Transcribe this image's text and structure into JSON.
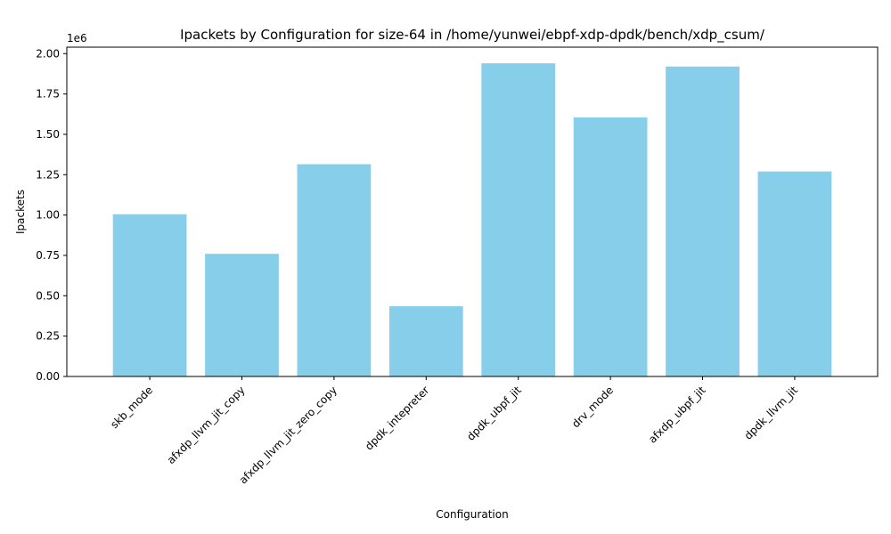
{
  "chart_data": {
    "type": "bar",
    "title": "Ipackets by Configuration for size-64 in /home/yunwei/ebpf-xdp-dpdk/bench/xdp_csum/",
    "xlabel": "Configuration",
    "ylabel": "Ipackets",
    "y_offset_label": "1e6",
    "categories": [
      "skb_mode",
      "afxdp_llvm_jit_copy",
      "afxdp_llvm_jit_zero_copy",
      "dpdk_intepreter",
      "dpdk_ubpf_jit",
      "drv_mode",
      "afxdp_ubpf_jit",
      "dpdk_llvm_jit"
    ],
    "values": [
      1005000,
      760000,
      1315000,
      435000,
      1940000,
      1605000,
      1920000,
      1270000
    ],
    "ylim": [
      0,
      2040000
    ],
    "yticks": [
      0,
      250000,
      500000,
      750000,
      1000000,
      1250000,
      1500000,
      1750000,
      2000000
    ],
    "ytick_labels": [
      "0.00",
      "0.25",
      "0.50",
      "0.75",
      "1.00",
      "1.25",
      "1.50",
      "1.75",
      "2.00"
    ],
    "bar_color": "#87ceeb",
    "grid": false,
    "legend": "none"
  }
}
